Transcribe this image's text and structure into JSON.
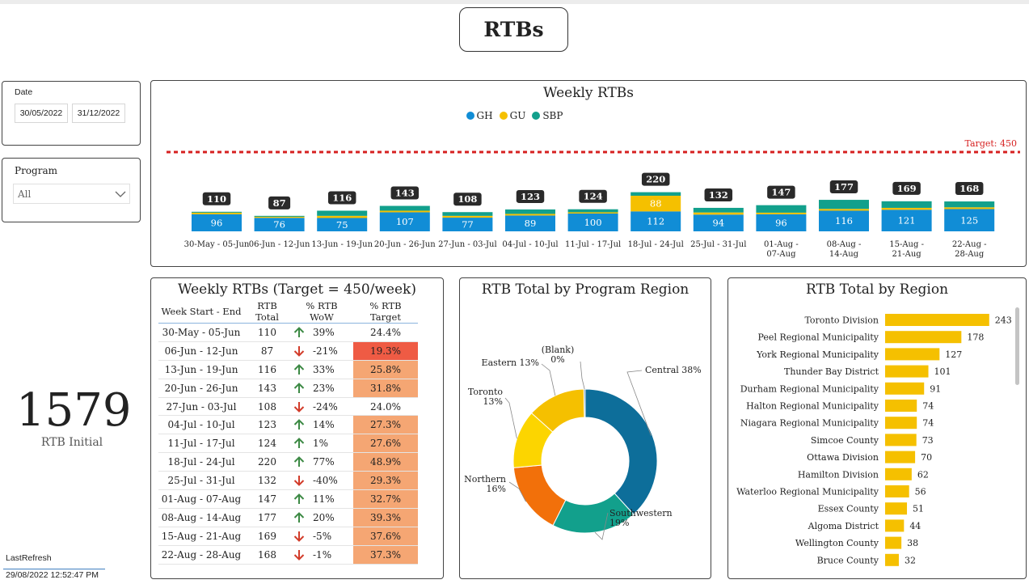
{
  "page_title": "RTBs",
  "slicers": {
    "date_label": "Date",
    "date_start": "30/05/2022",
    "date_end": "31/12/2022",
    "program_label": "Program",
    "program_value": "All"
  },
  "kpi": {
    "value": "1579",
    "label": "RTB Initial"
  },
  "refresh": {
    "label": "LastRefresh",
    "value": "29/08/2022 12:52:47 PM"
  },
  "colors": {
    "GH": "#118dd6",
    "GU": "#f5c000",
    "SBP": "#12a08c",
    "target_line": "#d62020",
    "bar_region": "#f5c000"
  },
  "weekly_chart": {
    "title": "Weekly RTBs",
    "target_label": "Target: 450",
    "legend": [
      "GH",
      "GU",
      "SBP"
    ],
    "chart_data": {
      "type": "bar",
      "stacked": true,
      "target": 450,
      "categories": [
        "30-May - 05-Jun",
        "06-Jun - 12-Jun",
        "13-Jun - 19-Jun",
        "20-Jun - 26-Jun",
        "27-Jun - 03-Jul",
        "04-Jul - 10-Jul",
        "11-Jul - 17-Jul",
        "18-Jul - 24-Jul",
        "25-Jul - 31-Jul",
        "01-Aug - 07-Aug",
        "08-Aug - 14-Aug",
        "15-Aug - 21-Aug",
        "22-Aug - 28-Aug"
      ],
      "series": [
        {
          "name": "GH",
          "values": [
            96,
            76,
            75,
            107,
            77,
            89,
            100,
            112,
            94,
            96,
            116,
            121,
            125
          ]
        },
        {
          "name": "GU",
          "values": [
            9,
            6,
            12,
            9,
            10,
            9,
            7,
            88,
            12,
            9,
            10,
            11,
            10
          ]
        },
        {
          "name": "SBP",
          "values": [
            5,
            5,
            29,
            27,
            21,
            25,
            17,
            20,
            26,
            42,
            51,
            37,
            33
          ]
        }
      ],
      "totals": [
        110,
        87,
        116,
        143,
        108,
        123,
        124,
        220,
        132,
        147,
        177,
        169,
        168
      ]
    }
  },
  "weekly_table": {
    "title": "Weekly RTBs (Target = 450/week)",
    "headers": [
      "Week Start - End",
      "RTB Total",
      "% RTB WoW",
      "% RTB Target"
    ],
    "rows": [
      {
        "week": "30-May - 05-Jun",
        "total": "110",
        "trend": "up",
        "wow": "39%",
        "target": "24.4%",
        "target_value": 24.4
      },
      {
        "week": "06-Jun - 12-Jun",
        "total": "87",
        "trend": "down",
        "wow": "-21%",
        "target": "19.3%",
        "target_value": 19.3
      },
      {
        "week": "13-Jun - 19-Jun",
        "total": "116",
        "trend": "up",
        "wow": "33%",
        "target": "25.8%",
        "target_value": 25.8
      },
      {
        "week": "20-Jun - 26-Jun",
        "total": "143",
        "trend": "up",
        "wow": "23%",
        "target": "31.8%",
        "target_value": 31.8
      },
      {
        "week": "27-Jun - 03-Jul",
        "total": "108",
        "trend": "down",
        "wow": "-24%",
        "target": "24.0%",
        "target_value": 24.0
      },
      {
        "week": "04-Jul - 10-Jul",
        "total": "123",
        "trend": "up",
        "wow": "14%",
        "target": "27.3%",
        "target_value": 27.3
      },
      {
        "week": "11-Jul - 17-Jul",
        "total": "124",
        "trend": "up",
        "wow": "1%",
        "target": "27.6%",
        "target_value": 27.6
      },
      {
        "week": "18-Jul - 24-Jul",
        "total": "220",
        "trend": "up",
        "wow": "77%",
        "target": "48.9%",
        "target_value": 48.9
      },
      {
        "week": "25-Jul - 31-Jul",
        "total": "132",
        "trend": "down",
        "wow": "-40%",
        "target": "29.3%",
        "target_value": 29.3
      },
      {
        "week": "01-Aug - 07-Aug",
        "total": "147",
        "trend": "up",
        "wow": "11%",
        "target": "32.7%",
        "target_value": 32.7
      },
      {
        "week": "08-Aug - 14-Aug",
        "total": "177",
        "trend": "up",
        "wow": "20%",
        "target": "39.3%",
        "target_value": 39.3
      },
      {
        "week": "15-Aug - 21-Aug",
        "total": "169",
        "trend": "down",
        "wow": "-5%",
        "target": "37.6%",
        "target_value": 37.6
      },
      {
        "week": "22-Aug - 28-Aug",
        "total": "168",
        "trend": "down",
        "wow": "-1%",
        "target": "37.3%",
        "target_value": 37.3
      }
    ]
  },
  "program_region": {
    "title": "RTB Total by Program Region",
    "chart_data": {
      "type": "pie",
      "donut": true,
      "slices": [
        {
          "name": "Central",
          "label": "Central 38%",
          "value": 38,
          "color": "#0d6e9a"
        },
        {
          "name": "Southwestern",
          "label": "Southwestern 19%",
          "value": 19,
          "color": "#12a08c"
        },
        {
          "name": "Northern",
          "label": "Northern 16%",
          "value": 16,
          "color": "#f2700a"
        },
        {
          "name": "Toronto",
          "label": "Toronto 13%",
          "value": 13,
          "color": "#fcd500"
        },
        {
          "name": "Eastern",
          "label": "Eastern 13%",
          "value": 13,
          "color": "#f5c000"
        },
        {
          "name": "(Blank)",
          "label": "(Blank) 0%",
          "value": 0.3,
          "color": "#2d6e9a"
        }
      ]
    }
  },
  "region_chart": {
    "title": "RTB Total by Region",
    "chart_data": {
      "type": "bar",
      "orientation": "horizontal",
      "categories": [
        "Toronto Division",
        "Peel Regional Municipality",
        "York Regional Municipality",
        "Thunder Bay District",
        "Durham Regional Municipality",
        "Halton Regional Municipality",
        "Niagara Regional Municipality",
        "Simcoe County",
        "Ottawa Division",
        "Hamilton Division",
        "Waterloo Regional Municipality",
        "Essex County",
        "Algoma District",
        "Wellington County",
        "Bruce County"
      ],
      "values": [
        243,
        178,
        127,
        101,
        91,
        74,
        74,
        73,
        70,
        62,
        56,
        51,
        44,
        38,
        32
      ]
    }
  }
}
